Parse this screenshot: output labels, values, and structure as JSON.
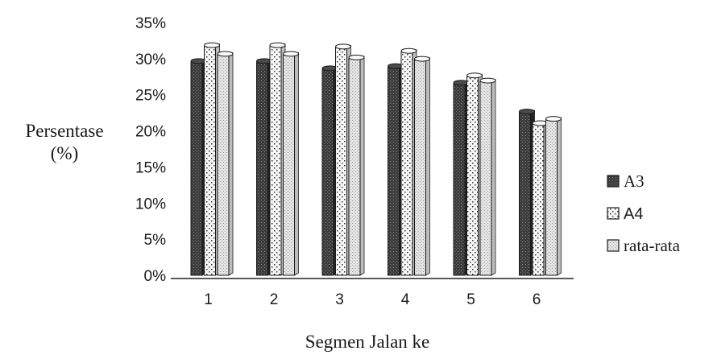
{
  "chart_data": {
    "type": "bar",
    "title": "",
    "ylabel": "Persentase (%)",
    "ylabel_line1": "Persentase",
    "ylabel_line2": "(%)",
    "xlabel": "Segmen Jalan ke",
    "categories": [
      "1",
      "2",
      "3",
      "4",
      "5",
      "6"
    ],
    "ylim": [
      0,
      35
    ],
    "yticks": [
      0,
      5,
      10,
      15,
      20,
      25,
      30,
      35
    ],
    "yticklabels": [
      "0%",
      "5%",
      "10%",
      "15%",
      "20%",
      "25%",
      "30%",
      "35%"
    ],
    "legend_position": "right",
    "series": [
      {
        "name": "A3",
        "values": [
          29.5,
          29.5,
          28.5,
          28.8,
          26.5,
          22.5
        ],
        "color": "#3a3a3a",
        "pattern": "dark-stipple"
      },
      {
        "name": "A4",
        "values": [
          31.7,
          31.7,
          31.5,
          30.9,
          27.5,
          20.9
        ],
        "color": "#f4f4f4",
        "pattern": "dots"
      },
      {
        "name": "rata-rata",
        "values": [
          30.5,
          30.5,
          30.0,
          29.8,
          26.8,
          21.5
        ],
        "color": "#d9d9d9",
        "pattern": "light-stipple"
      }
    ],
    "grid": false,
    "style": "3d-cylinder"
  }
}
